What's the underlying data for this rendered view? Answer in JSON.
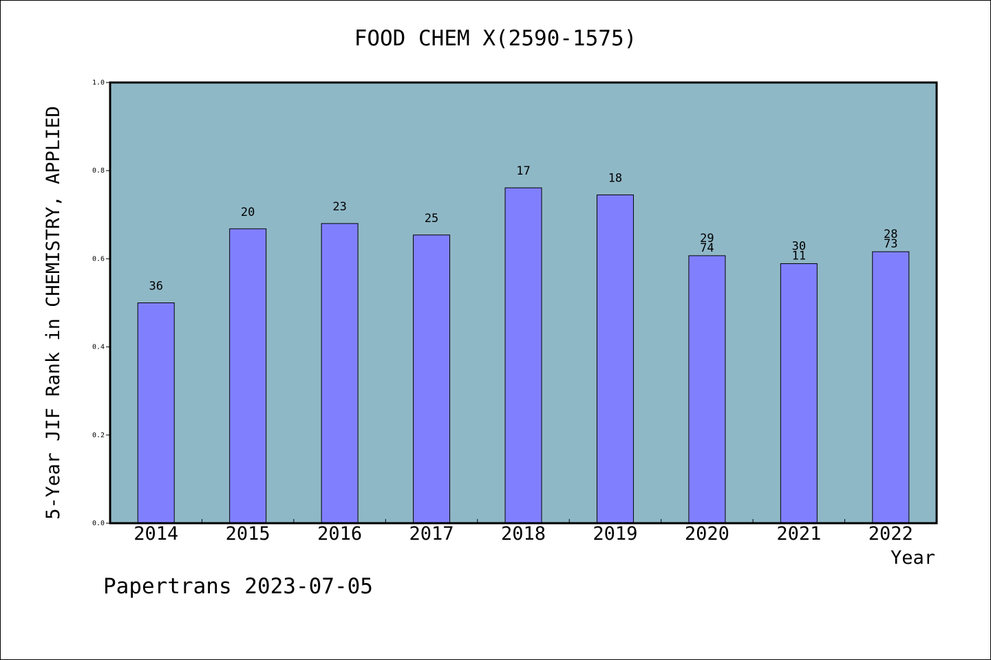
{
  "footer": {
    "credit": "Papertrans 2023-07-05"
  },
  "colors": {
    "plot_bg": "#8fb8c7",
    "bar": "#8080ff",
    "frame": "#000000"
  },
  "chart_data": {
    "type": "bar",
    "title": "FOOD CHEM X(2590-1575)",
    "xlabel": "Year",
    "ylabel": "5-Year JIF Rank in CHEMISTRY, APPLIED",
    "ylim": [
      0,
      1.0
    ],
    "yticks": [
      "0.0",
      "0.2",
      "0.4",
      "0.6",
      "0.8",
      "1.0"
    ],
    "grid": false,
    "categories": [
      "2014",
      "2015",
      "2016",
      "2017",
      "2018",
      "2019",
      "2020",
      "2021",
      "2022"
    ],
    "values": [
      0.5,
      0.668,
      0.68,
      0.654,
      0.761,
      0.745,
      0.607,
      0.589,
      0.616
    ],
    "labels": [
      [
        "36"
      ],
      [
        "20"
      ],
      [
        "23"
      ],
      [
        "25"
      ],
      [
        "17"
      ],
      [
        "18"
      ],
      [
        "29",
        "74"
      ],
      [
        "30",
        "11"
      ],
      [
        "28",
        "73"
      ]
    ]
  }
}
